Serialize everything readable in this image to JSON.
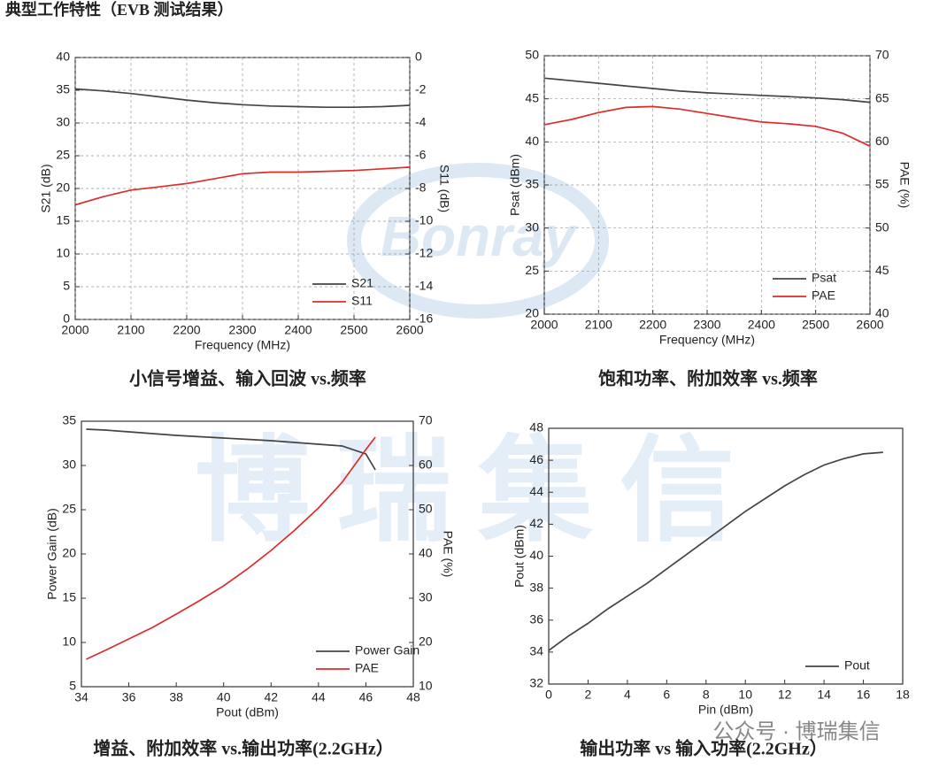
{
  "title": "典型工作特性（EVB 测试结果）",
  "watermark": [
    "Bonray",
    "博瑞集信"
  ],
  "footer_note": "公众号 · 博瑞集信",
  "chart_data": [
    {
      "type": "line",
      "caption": "小信号增益、输入回波  vs.频率",
      "x_label": "Frequency (MHz)",
      "y_label": "S21 (dB)",
      "y2_label": "S11 (dB)",
      "x": [
        2000,
        2050,
        2100,
        2150,
        2200,
        2250,
        2300,
        2350,
        2400,
        2450,
        2500,
        2550,
        2600
      ],
      "xlim": [
        2000,
        2600
      ],
      "xticks": [
        2000,
        2100,
        2200,
        2300,
        2400,
        2500,
        2600
      ],
      "ylim": [
        0,
        40
      ],
      "yticks": [
        0,
        5,
        10,
        15,
        20,
        25,
        30,
        35,
        40
      ],
      "y2lim": [
        -16,
        0
      ],
      "y2ticks": [
        -16,
        -14,
        -12,
        -10,
        -8,
        -6,
        -4,
        -2,
        0
      ],
      "grid": true,
      "legend": "lower right",
      "series": [
        {
          "name": "S21",
          "color": "#444444",
          "values": [
            35.2,
            34.9,
            34.5,
            34.0,
            33.5,
            33.1,
            32.8,
            32.6,
            32.5,
            32.4,
            32.4,
            32.5,
            32.7
          ]
        },
        {
          "name": "S11",
          "color": "#e02b2b",
          "axis": "y2",
          "values": [
            -9.0,
            -8.5,
            -8.1,
            -7.9,
            -7.7,
            -7.4,
            -7.1,
            -7.0,
            -7.0,
            -6.95,
            -6.9,
            -6.8,
            -6.7
          ]
        }
      ]
    },
    {
      "type": "line",
      "caption": "饱和功率、附加效率  vs.频率",
      "x_label": "Frequency (MHz)",
      "y_label": "Psat (dBm)",
      "y2_label": "PAE (%)",
      "x": [
        2000,
        2050,
        2100,
        2150,
        2200,
        2250,
        2300,
        2350,
        2400,
        2450,
        2500,
        2550,
        2600
      ],
      "xlim": [
        2000,
        2600
      ],
      "xticks": [
        2000,
        2100,
        2200,
        2300,
        2400,
        2500,
        2600
      ],
      "ylim": [
        20,
        50
      ],
      "yticks": [
        20,
        25,
        30,
        35,
        40,
        45,
        50
      ],
      "y2lim": [
        40,
        70
      ],
      "y2ticks": [
        40,
        45,
        50,
        55,
        60,
        65,
        70
      ],
      "grid": true,
      "legend": "lower right",
      "series": [
        {
          "name": "Psat",
          "color": "#444444",
          "values": [
            47.4,
            47.1,
            46.8,
            46.5,
            46.2,
            45.9,
            45.7,
            45.55,
            45.4,
            45.25,
            45.1,
            44.9,
            44.6
          ]
        },
        {
          "name": "PAE",
          "color": "#e02b2b",
          "axis": "y2",
          "values": [
            62.0,
            62.6,
            63.4,
            64.0,
            64.1,
            63.8,
            63.3,
            62.8,
            62.3,
            62.1,
            61.8,
            61.0,
            59.5
          ]
        }
      ]
    },
    {
      "type": "line",
      "caption": "增益、附加效率  vs.输出功率(2.2GHz）",
      "x_label": "Pout (dBm)",
      "y_label": "Power Gain (dB)",
      "y2_label": "PAE (%)",
      "x": [
        34.2,
        35,
        36,
        37,
        38,
        39,
        40,
        41,
        42,
        43,
        44,
        45,
        46,
        46.4
      ],
      "xlim": [
        34,
        48
      ],
      "xticks": [
        34,
        36,
        38,
        40,
        42,
        44,
        46,
        48
      ],
      "ylim": [
        5,
        35
      ],
      "yticks": [
        5,
        10,
        15,
        20,
        25,
        30,
        35
      ],
      "y2lim": [
        10,
        70
      ],
      "y2ticks": [
        10,
        20,
        30,
        40,
        50,
        60,
        70
      ],
      "grid": false,
      "legend": "lower right",
      "series": [
        {
          "name": "Power Gain",
          "color": "#444444",
          "values": [
            34.1,
            34.0,
            33.8,
            33.6,
            33.4,
            33.25,
            33.1,
            32.95,
            32.8,
            32.6,
            32.4,
            32.2,
            31.3,
            29.5
          ]
        },
        {
          "name": "PAE",
          "color": "#e02b2b",
          "axis": "y2",
          "values": [
            16.2,
            18.2,
            20.8,
            23.4,
            26.4,
            29.5,
            32.8,
            36.6,
            40.8,
            45.4,
            50.4,
            56.2,
            63.6,
            66.4
          ]
        }
      ]
    },
    {
      "type": "line",
      "caption": "输出功率 vs  输入功率(2.2GHz）",
      "x_label": "Pin (dBm)",
      "y_label": "Pout (dBm)",
      "x": [
        0,
        1,
        2,
        3,
        4,
        5,
        6,
        7,
        8,
        9,
        10,
        11,
        12,
        13,
        14,
        15,
        16,
        17
      ],
      "xlim": [
        0,
        18
      ],
      "xticks": [
        0,
        2,
        4,
        6,
        8,
        10,
        12,
        14,
        16,
        18
      ],
      "ylim": [
        32,
        48
      ],
      "yticks": [
        32,
        34,
        36,
        38,
        40,
        42,
        44,
        46,
        48
      ],
      "grid": false,
      "legend": "lower right",
      "series": [
        {
          "name": "Pout",
          "color": "#444444",
          "values": [
            34.1,
            35.0,
            35.8,
            36.7,
            37.5,
            38.3,
            39.2,
            40.1,
            41.0,
            41.9,
            42.8,
            43.6,
            44.4,
            45.1,
            45.7,
            46.1,
            46.4,
            46.5
          ]
        }
      ]
    }
  ]
}
